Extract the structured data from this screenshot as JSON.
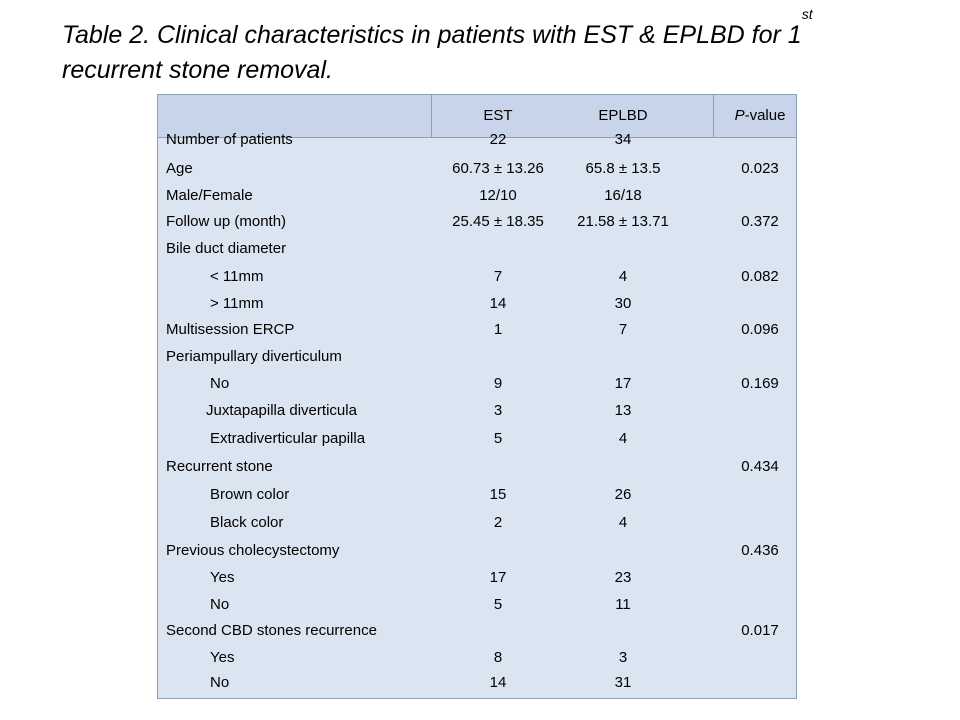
{
  "title": {
    "part1": "Table 2. Clinical characteristics in patients with EST & EPLBD for 1",
    "sup": "st",
    "part2": "recurrent stone removal."
  },
  "table": {
    "headers": {
      "est": "EST",
      "eplbd": "EPLBD",
      "p_italic": "P",
      "p_rest": "-value"
    },
    "rows": [
      {
        "label": "Number of patients",
        "est": "22",
        "eplbd": "34",
        "p": ""
      },
      {
        "label": "Age",
        "est": "60.73 ± 13.26",
        "eplbd": "65.8 ± 13.5",
        "p": "0.023"
      },
      {
        "label": "Male/Female",
        "est": "12/10",
        "eplbd": "16/18",
        "p": ""
      },
      {
        "label": "Follow up (month)",
        "est": "25.45 ± 18.35",
        "eplbd": "21.58 ± 13.71",
        "p": "0.372"
      },
      {
        "label": "Bile duct diameter",
        "est": "",
        "eplbd": "",
        "p": ""
      },
      {
        "label": "< 11mm",
        "est": "7",
        "eplbd": "4",
        "p": "0.082"
      },
      {
        "label": "> 11mm",
        "est": "14",
        "eplbd": "30",
        "p": ""
      },
      {
        "label": "Multisession  ERCP",
        "est": "1",
        "eplbd": "7",
        "p": "0.096"
      },
      {
        "label": "Periampullary diverticulum",
        "est": "",
        "eplbd": "",
        "p": ""
      },
      {
        "label": "No",
        "est": "9",
        "eplbd": "17",
        "p": "0.169"
      },
      {
        "label": "Juxtapapilla diverticula",
        "est": "3",
        "eplbd": "13",
        "p": ""
      },
      {
        "label": "Extradiverticular papilla",
        "est": "5",
        "eplbd": "4",
        "p": ""
      },
      {
        "label": "Recurrent stone",
        "est": "",
        "eplbd": "",
        "p": "0.434"
      },
      {
        "label": "Brown color",
        "est": "15",
        "eplbd": "26",
        "p": ""
      },
      {
        "label": "Black color",
        "est": "2",
        "eplbd": "4",
        "p": ""
      },
      {
        "label": "Previous cholecystectomy",
        "est": "",
        "eplbd": "",
        "p": "0.436"
      },
      {
        "label": "Yes",
        "est": "17",
        "eplbd": "23",
        "p": ""
      },
      {
        "label": "No",
        "est": "5",
        "eplbd": "11",
        "p": ""
      },
      {
        "label": "Second CBD stones recurrence",
        "est": "",
        "eplbd": "",
        "p": "0.017"
      },
      {
        "label": "Yes",
        "est": "8",
        "eplbd": "3",
        "p": ""
      },
      {
        "label": "No",
        "est": "14",
        "eplbd": "31",
        "p": ""
      }
    ]
  }
}
